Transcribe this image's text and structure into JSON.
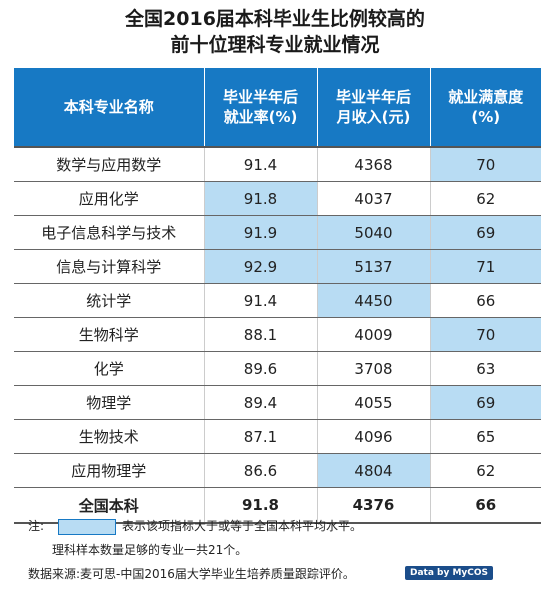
{
  "title_line1": "全国2016届本科毕业生比例较高的",
  "title_line2": "前十位理科专业就业情况",
  "chart_data": {
    "type": "table",
    "columns": [
      "本科专业名称",
      "毕业半年后就业率(%)",
      "毕业半年后月收入(元)",
      "就业满意度(%)"
    ],
    "column_lines": [
      [
        "本科专业名称"
      ],
      [
        "毕业半年后",
        "就业率(%)"
      ],
      [
        "毕业半年后",
        "月收入(元)"
      ],
      [
        "就业满意度(%)"
      ]
    ],
    "rows": [
      {
        "name": "数学与应用数学",
        "rate": "91.4",
        "income": "4368",
        "satisfaction": "70",
        "highlight": [
          false,
          false,
          true
        ]
      },
      {
        "name": "应用化学",
        "rate": "91.8",
        "income": "4037",
        "satisfaction": "62",
        "highlight": [
          true,
          false,
          false
        ]
      },
      {
        "name": "电子信息科学与技术",
        "rate": "91.9",
        "income": "5040",
        "satisfaction": "69",
        "highlight": [
          true,
          true,
          true
        ]
      },
      {
        "name": "信息与计算科学",
        "rate": "92.9",
        "income": "5137",
        "satisfaction": "71",
        "highlight": [
          true,
          true,
          true
        ]
      },
      {
        "name": "统计学",
        "rate": "91.4",
        "income": "4450",
        "satisfaction": "66",
        "highlight": [
          false,
          true,
          false
        ]
      },
      {
        "name": "生物科学",
        "rate": "88.1",
        "income": "4009",
        "satisfaction": "70",
        "highlight": [
          false,
          false,
          true
        ]
      },
      {
        "name": "化学",
        "rate": "89.6",
        "income": "3708",
        "satisfaction": "63",
        "highlight": [
          false,
          false,
          false
        ]
      },
      {
        "name": "物理学",
        "rate": "89.4",
        "income": "4055",
        "satisfaction": "69",
        "highlight": [
          false,
          false,
          true
        ]
      },
      {
        "name": "生物技术",
        "rate": "87.1",
        "income": "4096",
        "satisfaction": "65",
        "highlight": [
          false,
          false,
          false
        ]
      },
      {
        "name": "应用物理学",
        "rate": "86.6",
        "income": "4804",
        "satisfaction": "62",
        "highlight": [
          false,
          true,
          false
        ]
      }
    ],
    "total": {
      "name": "全国本科",
      "rate": "91.8",
      "income": "4376",
      "satisfaction": "66"
    },
    "highlight_color": "#b8dcf3",
    "header_color": "#1779c4"
  },
  "notes": {
    "label": "注:",
    "legend_text": "表示该项指标大于或等于全国本科平均水平。",
    "sample_note": "理科样本数量足够的专业一共21个。",
    "source": "数据来源:麦可思-中国2016届大学毕业生培养质量跟踪评价。",
    "badge": "Data by MyCOS"
  }
}
